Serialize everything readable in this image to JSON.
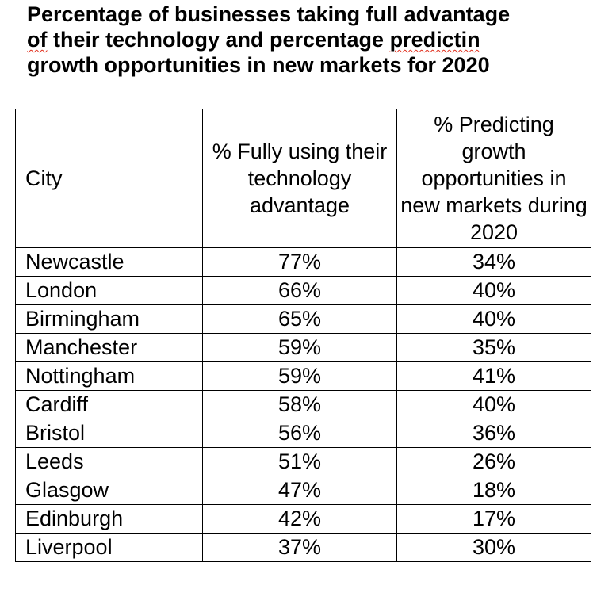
{
  "title": {
    "line1": "Percentage of businesses taking full advantage",
    "line2_pre": "of",
    "line2_mid": " their technology and percentage ",
    "line2_misspelled": "predictin",
    "line3": "growth opportunities in new markets for 2020"
  },
  "table": {
    "headers": {
      "city": "City",
      "tech": "% Fully using their technology advantage",
      "growth": "% Predicting growth opportunities in new markets during 2020"
    },
    "rows": [
      {
        "city": "Newcastle",
        "tech": "77%",
        "growth": "34%"
      },
      {
        "city": "London",
        "tech": "66%",
        "growth": "40%"
      },
      {
        "city": "Birmingham",
        "tech": "65%",
        "growth": "40%"
      },
      {
        "city": "Manchester",
        "tech": "59%",
        "growth": "35%"
      },
      {
        "city": "Nottingham",
        "tech": "59%",
        "growth": "41%"
      },
      {
        "city": "Cardiff",
        "tech": "58%",
        "growth": "40%"
      },
      {
        "city": "Bristol",
        "tech": "56%",
        "growth": "36%"
      },
      {
        "city": "Leeds",
        "tech": "51%",
        "growth": "26%"
      },
      {
        "city": "Glasgow",
        "tech": "47%",
        "growth": "18%"
      },
      {
        "city": "Edinburgh",
        "tech": "42%",
        "growth": "17%"
      },
      {
        "city": "Liverpool",
        "tech": "37%",
        "growth": "30%"
      }
    ]
  }
}
